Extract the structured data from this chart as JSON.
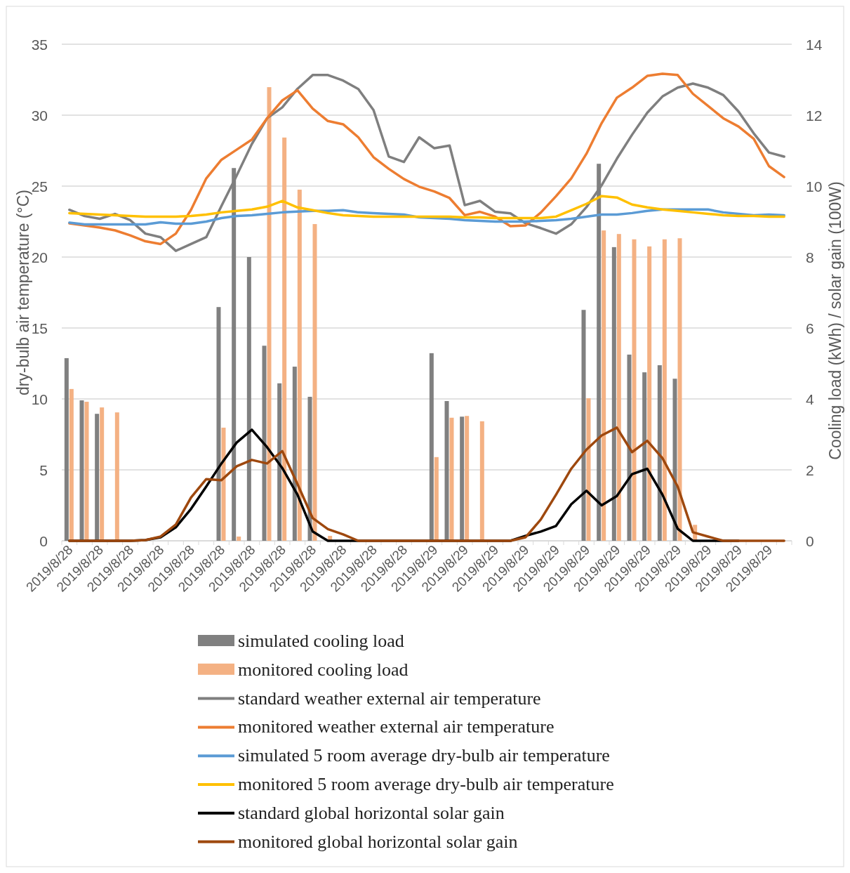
{
  "chart_data": {
    "type": "bar",
    "xlabel": null,
    "ylabel": "dry-bulb air temperature (°C)",
    "y2label": "Cooling load (kWh) / solar gain (100W)",
    "categories": [
      "2019/8/28",
      null,
      "2019/8/28",
      null,
      "2019/8/28",
      null,
      "2019/8/28",
      null,
      "2019/8/28",
      null,
      "2019/8/28",
      null,
      "2019/8/28",
      null,
      "2019/8/28",
      null,
      "2019/8/28",
      null,
      "2019/8/28",
      null,
      "2019/8/28",
      null,
      "2019/8/28",
      null,
      "2019/8/29",
      null,
      "2019/8/29",
      null,
      "2019/8/29",
      null,
      "2019/8/29",
      null,
      "2019/8/29",
      null,
      "2019/8/29",
      null,
      "2019/8/29",
      null,
      "2019/8/29",
      null,
      "2019/8/29",
      null,
      "2019/8/29",
      null,
      "2019/8/29",
      null,
      "2019/8/29",
      null
    ],
    "ylim": [
      0,
      35
    ],
    "yticks": [
      0,
      5,
      10,
      15,
      20,
      25,
      30,
      35
    ],
    "y2lim": [
      0,
      14
    ],
    "y2ticks": [
      0,
      2,
      4,
      6,
      8,
      10,
      12,
      14
    ],
    "grid": "y",
    "legend": "bottom",
    "series": [
      {
        "name": "simulated cooling load",
        "axis": "y2",
        "color": "#808080",
        "values": [
          5.15,
          3.96,
          3.58,
          null,
          null,
          null,
          null,
          null,
          null,
          null,
          6.59,
          10.51,
          8.0,
          5.5,
          4.44,
          4.91,
          4.06,
          null,
          null,
          null,
          null,
          null,
          null,
          null,
          5.29,
          3.94,
          3.5,
          null,
          null,
          null,
          null,
          null,
          null,
          null,
          6.51,
          10.63,
          8.28,
          5.25,
          4.75,
          4.95,
          4.57,
          null,
          null,
          null,
          null,
          null,
          null,
          null
        ]
      },
      {
        "name": "monitored cooling load",
        "axis": "y2",
        "color": "#f4b183",
        "values": [
          4.28,
          3.92,
          3.76,
          3.62,
          null,
          null,
          null,
          null,
          null,
          null,
          3.19,
          0.12,
          null,
          12.79,
          11.37,
          9.9,
          8.93,
          0.14,
          null,
          null,
          null,
          null,
          null,
          null,
          2.36,
          3.47,
          3.52,
          3.37,
          null,
          null,
          null,
          null,
          null,
          null,
          4.02,
          8.75,
          8.65,
          8.5,
          8.3,
          8.5,
          8.53,
          0.45,
          null,
          null,
          null,
          null,
          null,
          null
        ]
      },
      {
        "name": "standard weather external air temperature",
        "type": "line",
        "color": "#7f7f7f",
        "values": [
          23.33,
          22.89,
          22.7,
          23.04,
          22.6,
          21.65,
          21.4,
          20.44,
          20.92,
          21.4,
          23.6,
          25.74,
          27.97,
          29.78,
          30.55,
          31.86,
          32.83,
          32.83,
          32.44,
          31.84,
          30.36,
          27.09,
          26.7,
          28.44,
          27.67,
          27.86,
          23.66,
          23.96,
          23.19,
          23.08,
          22.38,
          22.04,
          21.65,
          22.31,
          23.52,
          25.06,
          26.93,
          28.62,
          30.17,
          31.32,
          31.94,
          32.23,
          31.94,
          31.42,
          30.26,
          28.72,
          27.37,
          27.08
        ]
      },
      {
        "name": "monitored weather external air temperature",
        "type": "line",
        "color": "#ed7d31",
        "values": [
          22.37,
          22.23,
          22.08,
          21.88,
          21.53,
          21.11,
          20.92,
          21.65,
          23.33,
          25.54,
          26.86,
          27.57,
          28.28,
          29.78,
          31.04,
          31.75,
          30.46,
          29.59,
          29.36,
          28.44,
          27.04,
          26.22,
          25.5,
          24.96,
          24.62,
          24.16,
          22.95,
          23.19,
          22.85,
          22.18,
          22.23,
          23.14,
          24.29,
          25.54,
          27.28,
          29.44,
          31.23,
          31.94,
          32.77,
          32.92,
          32.83,
          31.51,
          30.65,
          29.78,
          29.2,
          28.34,
          26.41,
          25.64
        ]
      },
      {
        "name": "simulated 5 room average dry-bulb air temperature",
        "type": "line",
        "color": "#5b9bd5",
        "values": [
          22.43,
          22.3,
          22.3,
          22.3,
          22.3,
          22.3,
          22.45,
          22.35,
          22.35,
          22.5,
          22.75,
          22.9,
          22.95,
          23.05,
          23.15,
          23.2,
          23.25,
          23.25,
          23.3,
          23.15,
          23.1,
          23.05,
          23.0,
          22.8,
          22.75,
          22.7,
          22.6,
          22.55,
          22.5,
          22.5,
          22.5,
          22.55,
          22.6,
          22.7,
          22.85,
          23.0,
          23.0,
          23.1,
          23.25,
          23.35,
          23.35,
          23.35,
          23.35,
          23.15,
          23.05,
          22.95,
          23.0,
          22.95
        ]
      },
      {
        "name": "monitored 5 room average dry-bulb air temperature",
        "type": "line",
        "color": "#ffc000",
        "values": [
          23.1,
          23.05,
          23.0,
          22.95,
          22.9,
          22.85,
          22.85,
          22.85,
          22.9,
          23.0,
          23.15,
          23.25,
          23.35,
          23.55,
          23.95,
          23.5,
          23.3,
          23.1,
          22.95,
          22.9,
          22.85,
          22.85,
          22.85,
          22.85,
          22.85,
          22.85,
          22.8,
          22.8,
          22.75,
          22.75,
          22.75,
          22.75,
          22.85,
          23.3,
          23.75,
          24.3,
          24.2,
          23.7,
          23.5,
          23.35,
          23.25,
          23.15,
          23.05,
          22.95,
          22.9,
          22.9,
          22.85,
          22.85
        ]
      },
      {
        "name": "standard global horizontal solar gain",
        "type": "line",
        "axis": "y2",
        "color": "#000000",
        "values": [
          0,
          0,
          0,
          0,
          0,
          0.02,
          0.1,
          0.38,
          0.9,
          1.53,
          2.18,
          2.77,
          3.13,
          2.64,
          2.05,
          1.3,
          0.26,
          0,
          0,
          0,
          0,
          0,
          0,
          0,
          0,
          0,
          0,
          0,
          0,
          0,
          0.14,
          0.26,
          0.42,
          1.03,
          1.41,
          1.0,
          1.26,
          1.88,
          2.03,
          1.3,
          0.34,
          0,
          0,
          0,
          0,
          null,
          null,
          null
        ]
      },
      {
        "name": "monitored global horizontal solar gain",
        "type": "line",
        "axis": "y2",
        "color": "#9e480e",
        "values": [
          0,
          0,
          0,
          0,
          0,
          0.02,
          0.12,
          0.46,
          1.22,
          1.74,
          1.71,
          2.1,
          2.28,
          2.18,
          2.53,
          1.6,
          0.64,
          0.33,
          0.18,
          0,
          0,
          0,
          0,
          0,
          0,
          0,
          0,
          0,
          0,
          0,
          0.1,
          0.6,
          1.3,
          2.03,
          2.57,
          2.97,
          3.19,
          2.5,
          2.82,
          2.33,
          1.53,
          0.24,
          0.12,
          0,
          0,
          0,
          0,
          0
        ]
      }
    ]
  }
}
